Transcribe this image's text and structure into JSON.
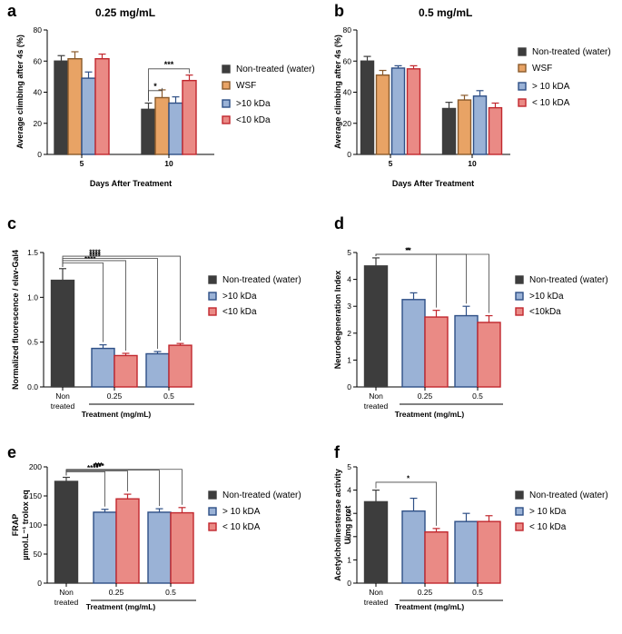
{
  "colors": {
    "dark": "#3d3d3d",
    "orange": "#e8a365",
    "orange_edge": "#8a5a2b",
    "blue": "#9ab2d6",
    "blue_edge": "#2e4f86",
    "red": "#ea8a85",
    "red_edge": "#c1272d",
    "axis": "#000000"
  },
  "chart_data": [
    {
      "panel": "a",
      "type": "bar",
      "title": "0.25 mg/mL",
      "xlabel": "Days After Treatment",
      "ylabel": "Average climbing after 4s (%)",
      "categories": [
        "5",
        "10"
      ],
      "ylim": [
        0,
        80
      ],
      "yticks": [
        "0",
        "20",
        "40",
        "60",
        "80"
      ],
      "series": [
        {
          "name": "Non-treated (water)",
          "color": "dark",
          "values": [
            60,
            29
          ],
          "errors": [
            3.5,
            4
          ]
        },
        {
          "name": "WSF",
          "color": "orange",
          "values": [
            61.5,
            36.5
          ],
          "errors": [
            4.5,
            5
          ]
        },
        {
          "name": ">10 kDa",
          "color": "blue",
          "values": [
            49,
            33
          ],
          "errors": [
            4,
            4
          ]
        },
        {
          "name": "<10 kDa",
          "color": "red",
          "values": [
            61.5,
            47.5
          ],
          "errors": [
            3,
            3.5
          ]
        }
      ],
      "significance": [
        {
          "label": "*",
          "from_series": 0,
          "to_series": 1,
          "category": 1,
          "level": 41
        },
        {
          "label": "***",
          "from_series": 0,
          "to_series": 3,
          "category": 1,
          "level": 55
        }
      ]
    },
    {
      "panel": "b",
      "type": "bar",
      "title": "0.5 mg/mL",
      "xlabel": "Days After Treatment",
      "ylabel": "Average climbing after 4s (%)",
      "categories": [
        "5",
        "10"
      ],
      "ylim": [
        0,
        80
      ],
      "yticks": [
        "0",
        "20",
        "40",
        "60",
        "80"
      ],
      "series": [
        {
          "name": "Non-treated (water)",
          "color": "dark",
          "values": [
            60,
            29.5
          ],
          "errors": [
            3,
            4
          ]
        },
        {
          "name": "WSF",
          "color": "orange",
          "values": [
            51,
            35
          ],
          "errors": [
            3,
            3
          ]
        },
        {
          "name": "> 10 kDA",
          "color": "blue",
          "values": [
            55.5,
            37.5
          ],
          "errors": [
            1.5,
            3.5
          ]
        },
        {
          "name": "< 10 kDA",
          "color": "red",
          "values": [
            55,
            30
          ],
          "errors": [
            2,
            3
          ]
        }
      ],
      "significance": []
    },
    {
      "panel": "c",
      "type": "bar",
      "title": "",
      "xlabel": "Treatment (mg/mL)",
      "ylabel": "Normalized fluorescence / elav-Gal4",
      "control_label": [
        "Non",
        "treated"
      ],
      "control": {
        "name": "Non-treated (water)",
        "value": 1.19,
        "error": 0.13
      },
      "categories": [
        "0.25",
        "0.5"
      ],
      "ylim": [
        0,
        1.5
      ],
      "yticks": [
        "0.0",
        "0.5",
        "1.0",
        "1.5"
      ],
      "series": [
        {
          "name": ">10 kDa",
          "color": "blue",
          "values": [
            0.43,
            0.37
          ],
          "errors": [
            0.04,
            0.025
          ]
        },
        {
          "name": "<10 kDa",
          "color": "red",
          "values": [
            0.35,
            0.465
          ],
          "errors": [
            0.025,
            0.02
          ]
        }
      ],
      "significance": [
        {
          "label": "****",
          "category": 0,
          "series": 0
        },
        {
          "label": "****",
          "category": 0,
          "series": 1
        },
        {
          "label": "****",
          "category": 1,
          "series": 0
        },
        {
          "label": "****",
          "category": 1,
          "series": 1
        }
      ]
    },
    {
      "panel": "d",
      "type": "bar",
      "title": "",
      "xlabel": "Treatment  (mg/mL)",
      "ylabel": "Neurodegeneration Index",
      "control_label": [
        "Non",
        "treated"
      ],
      "control": {
        "name": "Non-treated (water)",
        "value": 4.5,
        "error": 0.3
      },
      "categories": [
        "0.25",
        "0.5"
      ],
      "ylim": [
        0,
        5
      ],
      "yticks": [
        "0",
        "1",
        "2",
        "3",
        "4",
        "5"
      ],
      "series": [
        {
          "name": ">10 kDa",
          "color": "blue",
          "values": [
            3.25,
            2.65
          ],
          "errors": [
            0.25,
            0.35
          ]
        },
        {
          "name": "<10kDa",
          "color": "red",
          "values": [
            2.6,
            2.4
          ],
          "errors": [
            0.25,
            0.25
          ]
        }
      ],
      "significance": [
        {
          "label": "*",
          "category": 0,
          "series": 1
        },
        {
          "label": "**",
          "category": 1,
          "series": 0
        },
        {
          "label": "**",
          "category": 1,
          "series": 1
        }
      ]
    },
    {
      "panel": "e",
      "type": "bar",
      "title": "",
      "xlabel": "Treatment  (mg/mL)",
      "ylabel": [
        "FRAP",
        "µmol.L⁻¹ trolox eq"
      ],
      "control_label": [
        "Non",
        "treated"
      ],
      "control": {
        "name": "Non-treated (water)",
        "value": 175,
        "error": 7
      },
      "categories": [
        "0.25",
        "0.5"
      ],
      "ylim": [
        0,
        200
      ],
      "yticks": [
        "0",
        "50",
        "100",
        "150",
        "200"
      ],
      "series": [
        {
          "name": "> 10 kDA",
          "color": "blue",
          "values": [
            122,
            122
          ],
          "errors": [
            5,
            6
          ]
        },
        {
          "name": "< 10 kDA",
          "color": "red",
          "values": [
            145,
            121
          ],
          "errors": [
            8,
            9
          ]
        }
      ],
      "significance": [
        {
          "label": "****",
          "category": 0,
          "series": 0
        },
        {
          "label": "**",
          "category": 0,
          "series": 1
        },
        {
          "label": "****",
          "category": 1,
          "series": 0
        },
        {
          "label": "***",
          "category": 1,
          "series": 1
        }
      ]
    },
    {
      "panel": "f",
      "type": "bar",
      "title": "",
      "xlabel": "Treatment  (mg/mL)",
      "ylabel": [
        "Acetylcholinesterase activity",
        "U/mg prot"
      ],
      "control_label": [
        "Non",
        "treated"
      ],
      "control": {
        "name": "Non-treated (water)",
        "value": 3.5,
        "error": 0.5
      },
      "categories": [
        "0.25",
        "0.5"
      ],
      "ylim": [
        0,
        5
      ],
      "yticks": [
        "0",
        "1",
        "2",
        "3",
        "4",
        "5"
      ],
      "series": [
        {
          "name": "> 10 kDa",
          "color": "blue",
          "values": [
            3.1,
            2.65
          ],
          "errors": [
            0.55,
            0.35
          ]
        },
        {
          "name": "< 10 kDa",
          "color": "red",
          "values": [
            2.2,
            2.65
          ],
          "errors": [
            0.15,
            0.25
          ]
        }
      ],
      "significance": [
        {
          "label": "*",
          "category": 0,
          "series": 1
        }
      ]
    }
  ]
}
